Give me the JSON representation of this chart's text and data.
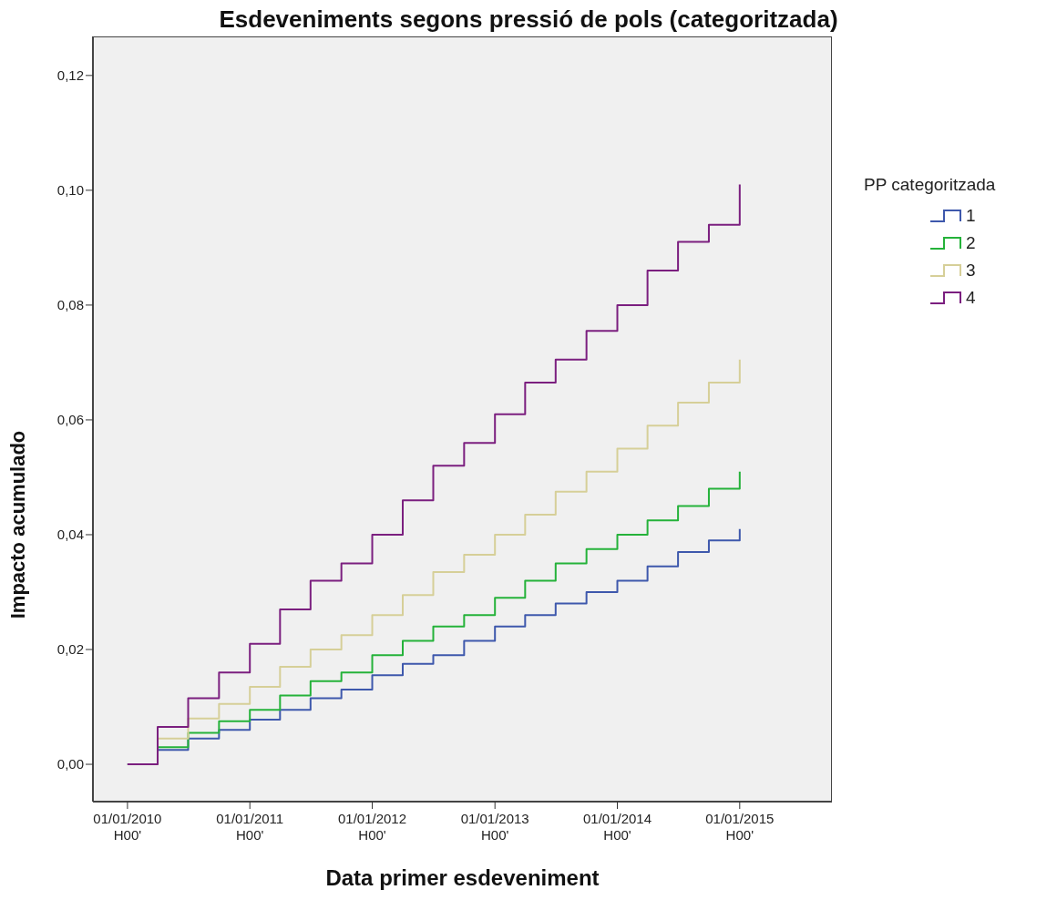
{
  "chart_data": {
    "type": "step",
    "title": "Esdeveniments segons pressió de pols (categoritzada)",
    "xlabel": "Data primer esdeveniment",
    "ylabel": "Impacto acumulado",
    "legend_title": "PP categoritzada",
    "legend": "right",
    "grid": false,
    "marker": "none",
    "line_style": "solid",
    "x": [
      "2010-01-01",
      "2010-04-01",
      "2010-07-01",
      "2010-10-01",
      "2011-01-01",
      "2011-04-01",
      "2011-07-01",
      "2011-10-01",
      "2012-01-01",
      "2012-04-01",
      "2012-07-01",
      "2012-10-01",
      "2013-01-01",
      "2013-04-01",
      "2013-07-01",
      "2013-10-01",
      "2014-01-01",
      "2014-04-01",
      "2014-07-01",
      "2014-10-01",
      "2015-01-01"
    ],
    "series": [
      {
        "name": "1",
        "color": "#3e58ac",
        "values": [
          0,
          0.0025,
          0.0045,
          0.006,
          0.0078,
          0.0095,
          0.0115,
          0.013,
          0.0155,
          0.0175,
          0.019,
          0.0215,
          0.024,
          0.026,
          0.028,
          0.03,
          0.032,
          0.0345,
          0.037,
          0.039,
          0.041
        ]
      },
      {
        "name": "2",
        "color": "#25b23a",
        "values": [
          0,
          0.003,
          0.0055,
          0.0075,
          0.0095,
          0.012,
          0.0145,
          0.016,
          0.019,
          0.0215,
          0.024,
          0.026,
          0.029,
          0.032,
          0.035,
          0.0375,
          0.04,
          0.0425,
          0.045,
          0.048,
          0.051
        ]
      },
      {
        "name": "3",
        "color": "#d6cf98",
        "values": [
          0,
          0.0045,
          0.008,
          0.0105,
          0.0135,
          0.017,
          0.02,
          0.0225,
          0.026,
          0.0295,
          0.0335,
          0.0365,
          0.04,
          0.0435,
          0.0475,
          0.051,
          0.055,
          0.059,
          0.063,
          0.0665,
          0.0705
        ]
      },
      {
        "name": "4",
        "color": "#7b1f7f",
        "values": [
          0,
          0.0065,
          0.0115,
          0.016,
          0.021,
          0.027,
          0.032,
          0.035,
          0.04,
          0.046,
          0.052,
          0.056,
          0.061,
          0.0665,
          0.0705,
          0.0755,
          0.08,
          0.086,
          0.091,
          0.094,
          0.101
        ]
      }
    ],
    "xlim": [
      "2009-09-20",
      "2015-10-03"
    ],
    "xticks": [
      {
        "value": "2010-01-01",
        "label": "01/01/2010\nH00'"
      },
      {
        "value": "2011-01-01",
        "label": "01/01/2011\nH00'"
      },
      {
        "value": "2012-01-01",
        "label": "01/01/2012\nH00'"
      },
      {
        "value": "2013-01-01",
        "label": "01/01/2013\nH00'"
      },
      {
        "value": "2014-01-01",
        "label": "01/01/2014\nH00'"
      },
      {
        "value": "2015-01-01",
        "label": "01/01/2015\nH00'"
      }
    ],
    "ylim": [
      -0.0065,
      0.1268
    ],
    "yticks": [
      {
        "value": 0,
        "label": "0,00"
      },
      {
        "value": 0.02,
        "label": "0,02"
      },
      {
        "value": 0.04,
        "label": "0,04"
      },
      {
        "value": 0.06,
        "label": "0,06"
      },
      {
        "value": 0.08,
        "label": "0,08"
      },
      {
        "value": 0.1,
        "label": "0,10"
      },
      {
        "value": 0.12,
        "label": "0,12"
      }
    ]
  }
}
